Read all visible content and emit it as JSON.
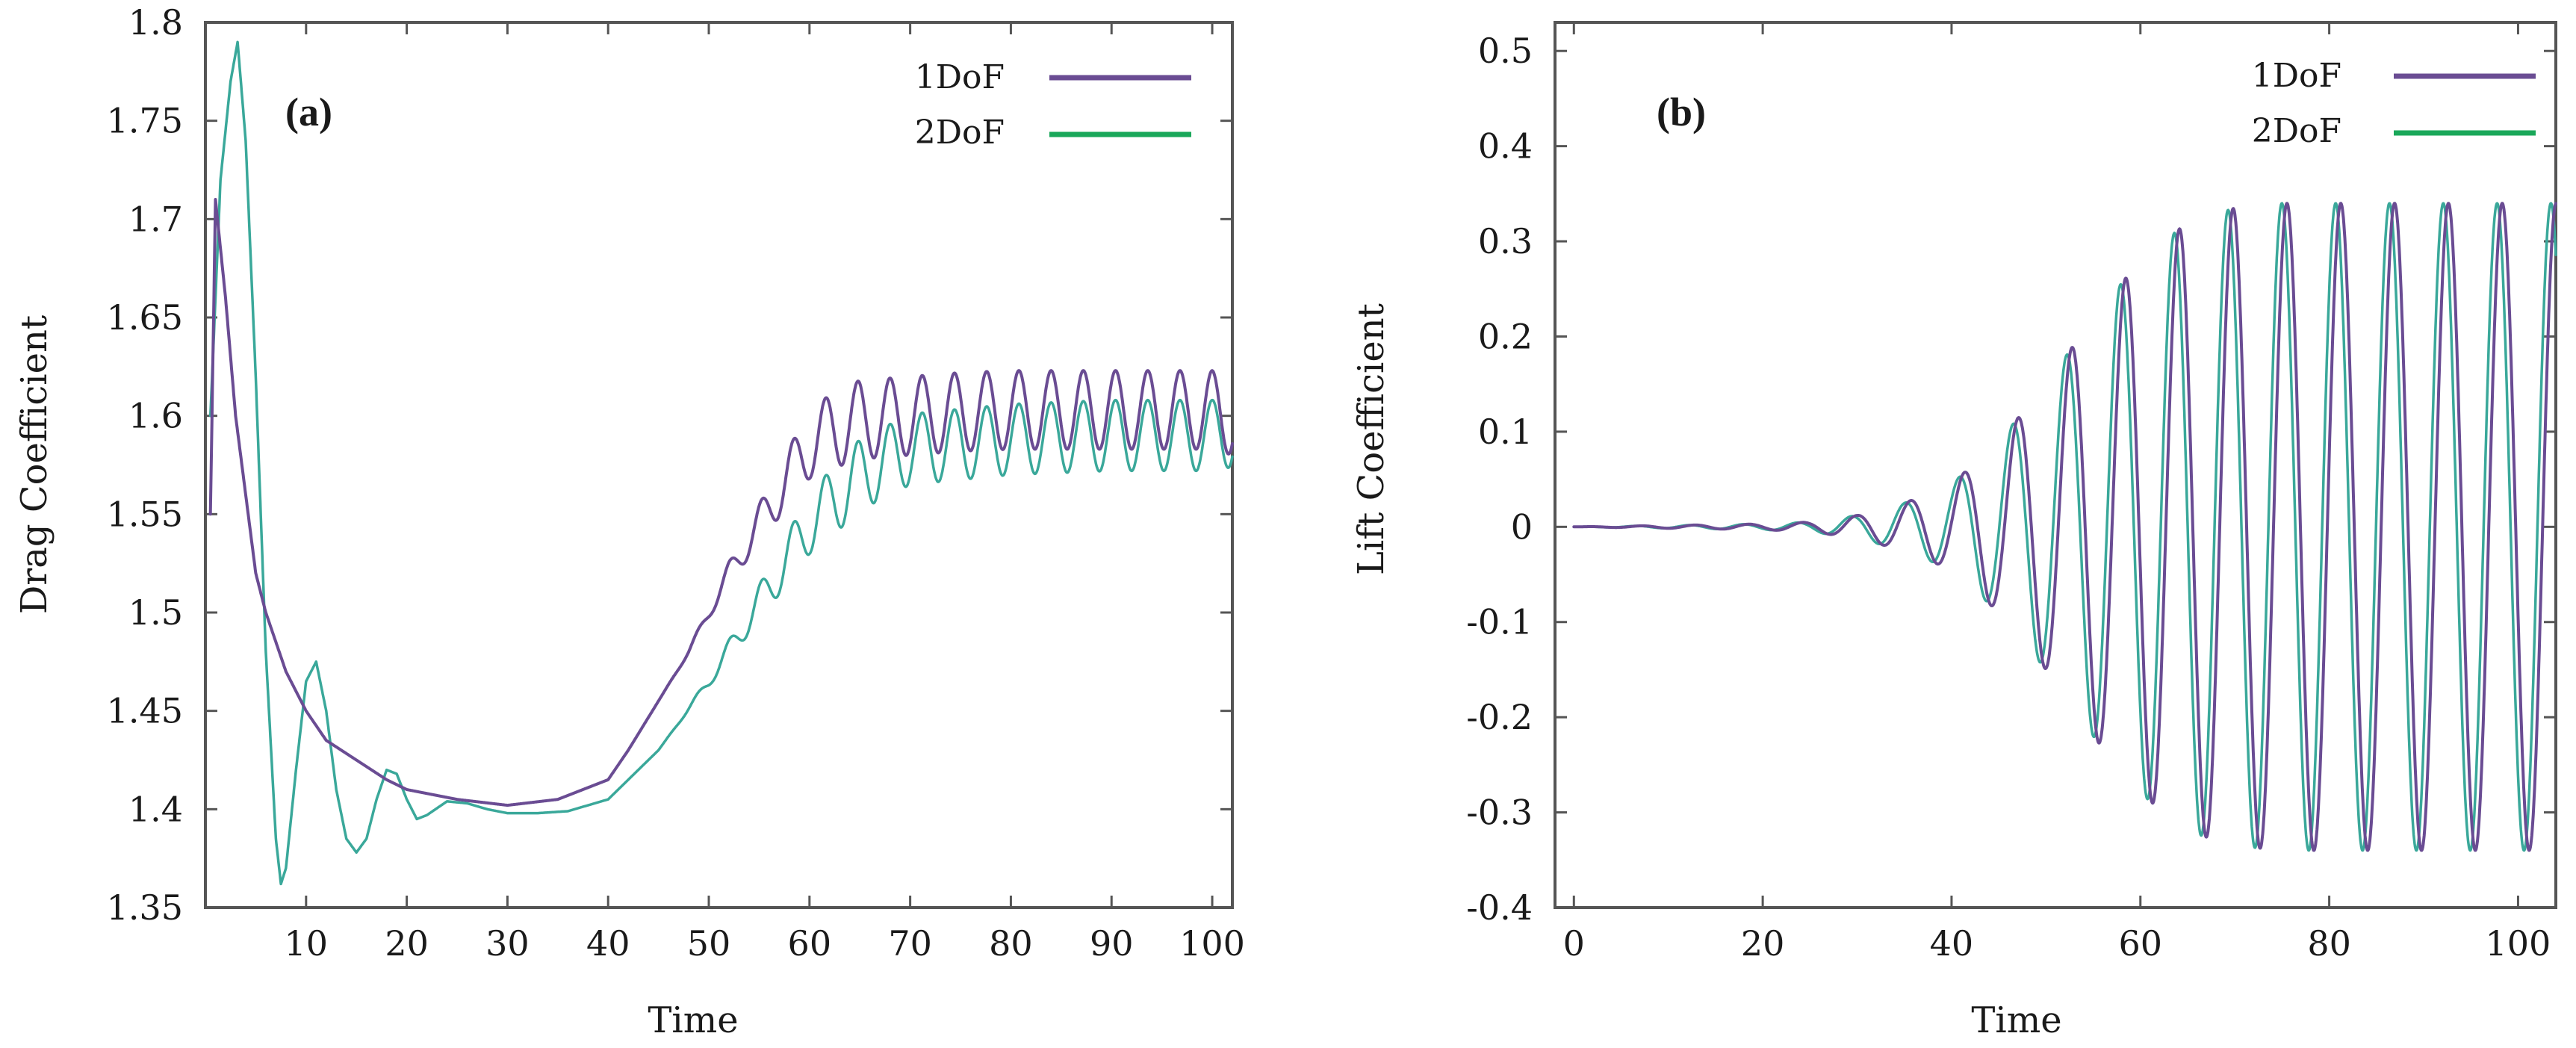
{
  "colors": {
    "series_1dof": "#6a4c93",
    "series_2dof": "#1aa85a",
    "trace_2dof": "#3aa89a"
  },
  "chart_data": [
    {
      "id": "a",
      "type": "line",
      "panel_label": "(a)",
      "title": "",
      "xlabel": "Time",
      "ylabel": "Drag Coefficient",
      "xlim": [
        0,
        102
      ],
      "ylim": [
        1.35,
        1.8
      ],
      "xticks": [
        10,
        20,
        30,
        40,
        50,
        60,
        70,
        80,
        90,
        100
      ],
      "xtick_labels": [
        "10",
        "20",
        "30",
        "40",
        "50",
        "60",
        "70",
        "80",
        "90",
        "100"
      ],
      "yticks": [
        1.35,
        1.4,
        1.45,
        1.5,
        1.55,
        1.6,
        1.65,
        1.7,
        1.75,
        1.8
      ],
      "ytick_labels": [
        "1.35",
        "1.4",
        "1.45",
        "1.5",
        "1.55",
        "1.6",
        "1.65",
        "1.7",
        "1.75",
        "1.8"
      ],
      "legend_position": "top-right",
      "series": [
        {
          "name": "1DoF",
          "color": "#6a4c93",
          "x": [
            0.5,
            1,
            2,
            3,
            4,
            5,
            6,
            8,
            10,
            12,
            15,
            18,
            20,
            25,
            30,
            35,
            40,
            42,
            45,
            48,
            50,
            52,
            55,
            58,
            60,
            62,
            65,
            70,
            75,
            80,
            85,
            90,
            95,
            100,
            102
          ],
          "y": [
            1.55,
            1.71,
            1.66,
            1.6,
            1.56,
            1.52,
            1.5,
            1.47,
            1.45,
            1.435,
            1.425,
            1.415,
            1.41,
            1.405,
            1.402,
            1.405,
            1.415,
            1.43,
            1.455,
            1.48,
            1.5,
            1.52,
            1.545,
            1.57,
            1.585,
            1.592,
            1.598,
            1.6,
            1.602,
            1.603,
            1.603,
            1.603,
            1.603,
            1.603,
            1.6
          ],
          "oscillation": {
            "start": 45,
            "full": 65,
            "amplitude": 0.02,
            "period": 3.2
          }
        },
        {
          "name": "2DoF",
          "color": "#3aa89a",
          "x": [
            0.5,
            1.5,
            2.5,
            3.2,
            4,
            5,
            6,
            7,
            7.5,
            8,
            9,
            10,
            11,
            12,
            13,
            14,
            15,
            16,
            17,
            18,
            19,
            20,
            21,
            22,
            24,
            26,
            28,
            30,
            33,
            36,
            40,
            45,
            50,
            55,
            60,
            65,
            70,
            80,
            90,
            100,
            102
          ],
          "y": [
            1.6,
            1.72,
            1.77,
            1.79,
            1.74,
            1.62,
            1.48,
            1.385,
            1.362,
            1.37,
            1.42,
            1.465,
            1.475,
            1.45,
            1.41,
            1.385,
            1.378,
            1.385,
            1.405,
            1.42,
            1.418,
            1.405,
            1.395,
            1.397,
            1.404,
            1.403,
            1.4,
            1.398,
            1.398,
            1.399,
            1.405,
            1.43,
            1.465,
            1.505,
            1.545,
            1.57,
            1.583,
            1.588,
            1.59,
            1.59,
            1.592
          ],
          "oscillation": {
            "start": 45,
            "full": 65,
            "amplitude": 0.018,
            "period": 3.2
          }
        }
      ]
    },
    {
      "id": "b",
      "type": "line",
      "panel_label": "(b)",
      "title": "",
      "xlabel": "Time",
      "ylabel": "Lift Coefficient",
      "xlim": [
        -2,
        104
      ],
      "ylim": [
        -0.4,
        0.53
      ],
      "xticks": [
        0,
        20,
        40,
        60,
        80,
        100
      ],
      "xtick_labels": [
        "0",
        "20",
        "40",
        "60",
        "80",
        "100"
      ],
      "yticks": [
        -0.4,
        -0.3,
        -0.2,
        -0.1,
        0,
        0.1,
        0.2,
        0.3,
        0.4,
        0.5
      ],
      "ytick_labels": [
        "-0.4",
        "-0.3",
        "-0.2",
        "-0.1",
        "0",
        "0.1",
        "0.2",
        "0.3",
        "0.4",
        "0.5"
      ],
      "legend_position": "top-right",
      "series": [
        {
          "name": "1DoF",
          "color": "#6a4c93",
          "envelope_t": [
            0,
            20,
            25,
            30,
            35,
            40,
            45,
            50,
            55,
            60,
            65,
            70,
            75,
            100,
            104
          ],
          "envelope_amp": [
            0,
            0.003,
            0.005,
            0.012,
            0.025,
            0.045,
            0.09,
            0.15,
            0.22,
            0.28,
            0.32,
            0.335,
            0.34,
            0.34,
            0.34
          ],
          "period": 5.7,
          "phase": 0
        },
        {
          "name": "2DoF",
          "color": "#3aa89a",
          "envelope_t": [
            0,
            20,
            25,
            30,
            35,
            40,
            45,
            50,
            55,
            60,
            65,
            70,
            75,
            100,
            104
          ],
          "envelope_amp": [
            0,
            0.003,
            0.005,
            0.012,
            0.025,
            0.045,
            0.09,
            0.15,
            0.22,
            0.28,
            0.32,
            0.335,
            0.34,
            0.34,
            0.34
          ],
          "period": 5.7,
          "phase": 0.6
        }
      ]
    }
  ]
}
